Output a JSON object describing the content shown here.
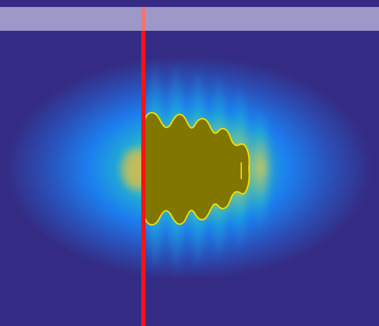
{
  "colors": {
    "background": "#342C84",
    "banner": "#9A92C4",
    "banner_opacity": 0.75,
    "marker_line": "#F51414",
    "blob_fill": "#807600",
    "blob_outline": "#F2E000",
    "halo_stops": [
      "#F6C038",
      "#93B06C",
      "#20B4D0",
      "#1C7EEE",
      "#2B4FB7",
      "#342C84"
    ]
  },
  "scene": {
    "description_icon": "heatmap-field-icon"
  }
}
